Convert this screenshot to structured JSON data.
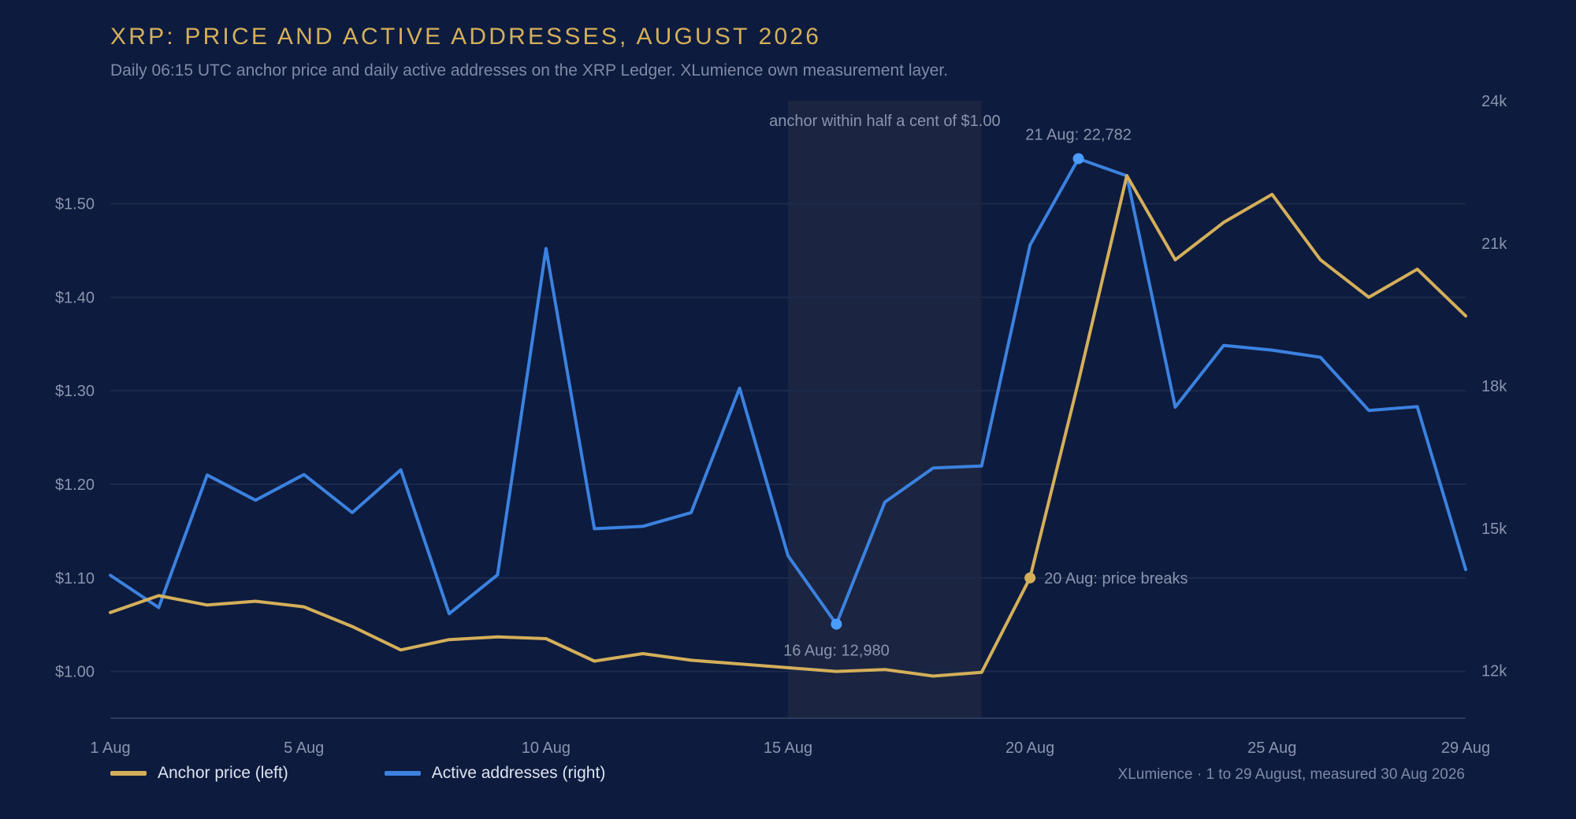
{
  "title": "XRP: PRICE AND ACTIVE ADDRESSES, AUGUST 2026",
  "subtitle": "Daily 06:15 UTC anchor price and daily active addresses on the XRP Ledger. XLumience own measurement layer.",
  "source": "XLumience · 1 to 29 August, measured 30 Aug 2026",
  "legend": {
    "price_label": "Anchor price (left)",
    "addresses_label": "Active addresses (right)"
  },
  "colors": {
    "background": "#0d1b3e",
    "price": "#d4af5a",
    "addresses": "#3b82e0",
    "address_marker": "#4b9cff",
    "shade": "#1b2440",
    "grid": "#1c2a4b",
    "axis_text": "#8a94ad"
  },
  "chart_data": {
    "type": "line",
    "title": "XRP: PRICE AND ACTIVE ADDRESSES, AUGUST 2026",
    "x_tick_labels": [
      "1 Aug",
      "5 Aug",
      "10 Aug",
      "15 Aug",
      "20 Aug",
      "25 Aug",
      "29 Aug"
    ],
    "x_tick_days": [
      1,
      5,
      10,
      15,
      20,
      25,
      29
    ],
    "xlim": [
      1,
      29
    ],
    "y_left": {
      "ticks": [
        1.0,
        1.1,
        1.2,
        1.3,
        1.4,
        1.5
      ],
      "tick_labels": [
        "$1.00",
        "$1.10",
        "$1.20",
        "$1.30",
        "$1.40",
        "$1.50"
      ],
      "range": [
        0.95,
        1.61
      ]
    },
    "y_right": {
      "ticks": [
        12000,
        15000,
        18000,
        21000,
        24000
      ],
      "tick_labels": [
        "12k",
        "15k",
        "18k",
        "21k",
        "24k"
      ],
      "range": [
        11000,
        24000
      ]
    },
    "grid": true,
    "legend_position": "bottom-left",
    "days": [
      1,
      2,
      3,
      4,
      5,
      6,
      7,
      8,
      9,
      10,
      11,
      12,
      13,
      14,
      15,
      16,
      17,
      18,
      19,
      20,
      21,
      22,
      23,
      24,
      25,
      26,
      27,
      28,
      29
    ],
    "series": [
      {
        "name": "Anchor price (left)",
        "axis": "left",
        "values": [
          1.063,
          1.081,
          1.071,
          1.075,
          1.069,
          1.048,
          1.023,
          1.034,
          1.037,
          1.035,
          1.011,
          1.019,
          1.012,
          1.008,
          1.004,
          1.0,
          1.002,
          0.995,
          0.999,
          1.1,
          1.31,
          1.53,
          1.44,
          1.48,
          1.51,
          1.44,
          1.4,
          1.43,
          1.38
        ]
      },
      {
        "name": "Active addresses (right)",
        "axis": "right",
        "values": [
          14010,
          13330,
          16120,
          15590,
          16130,
          15330,
          16230,
          13200,
          14020,
          20890,
          14990,
          15040,
          15330,
          17950,
          14420,
          12980,
          15550,
          16270,
          16310,
          20960,
          22782,
          22420,
          17550,
          18850,
          18750,
          18600,
          17480,
          17560,
          14130
        ]
      }
    ],
    "shaded_band": {
      "from_day": 15,
      "to_day": 19,
      "label": "anchor within half a cent of $1.00"
    },
    "annotations": [
      {
        "day": 21,
        "series": "Active addresses (right)",
        "label": "21 Aug: 22,782",
        "placement": "above"
      },
      {
        "day": 16,
        "series": "Active addresses (right)",
        "label": "16 Aug: 12,980",
        "placement": "below"
      },
      {
        "day": 20,
        "series": "Anchor price (left)",
        "label": "20 Aug: price breaks",
        "placement": "right"
      }
    ]
  }
}
